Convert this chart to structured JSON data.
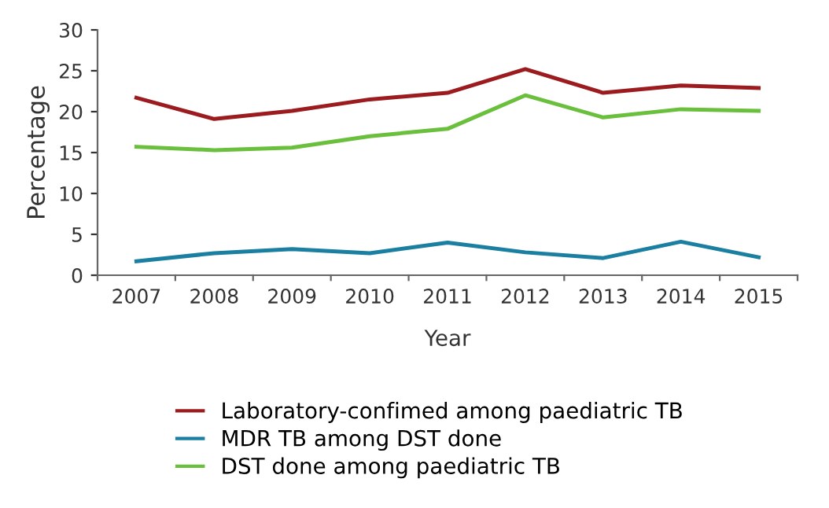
{
  "chart_data": {
    "type": "line",
    "xlabel": "Year",
    "ylabel": "Percentage",
    "categories": [
      "2007",
      "2008",
      "2009",
      "2010",
      "2011",
      "2012",
      "2013",
      "2014",
      "2015"
    ],
    "series": [
      {
        "name": "Laboratory-confimed among paediatric TB",
        "color": "#9b1b1e",
        "values": [
          21.7,
          19.1,
          20.1,
          21.5,
          22.3,
          25.2,
          22.3,
          23.2,
          22.9
        ]
      },
      {
        "name": "MDR TB among DST done",
        "color": "#1a7fa0",
        "values": [
          1.7,
          2.7,
          3.2,
          2.7,
          4.0,
          2.8,
          2.1,
          4.1,
          2.2
        ]
      },
      {
        "name": "DST done among paediatric TB",
        "color": "#6abf3c",
        "values": [
          15.7,
          15.3,
          15.6,
          17.0,
          17.9,
          22.0,
          19.3,
          20.3,
          20.1
        ]
      }
    ],
    "ylim": [
      0,
      30
    ],
    "yticks": [
      0,
      5,
      10,
      15,
      20,
      25,
      30
    ],
    "grid": false,
    "legend": "bottom",
    "marker": "none",
    "line_style": "solid"
  }
}
